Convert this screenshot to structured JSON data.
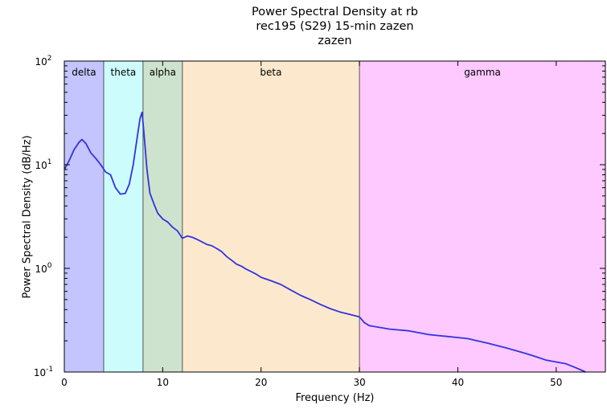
{
  "chart_data": {
    "type": "line",
    "title": "Power Spectral Density at rb",
    "subtitle": "rec195 (S29) 15-min zazen",
    "subtitle2": "zazen",
    "xlabel": "Frequency (Hz)",
    "ylabel": "Power Spectral Density (dB/Hz)",
    "xlim": [
      0,
      55
    ],
    "ylim": [
      0.1,
      100
    ],
    "yscale": "log",
    "grid": false,
    "x_ticks": [
      0,
      10,
      20,
      30,
      40,
      50
    ],
    "y_ticks": [
      {
        "value": 0.1,
        "base": "10",
        "exp": "-1"
      },
      {
        "value": 1,
        "base": "10",
        "exp": "0"
      },
      {
        "value": 10,
        "base": "10",
        "exp": "1"
      },
      {
        "value": 100,
        "base": "10",
        "exp": "2"
      }
    ],
    "bands": [
      {
        "label": "delta",
        "range": [
          0,
          4
        ],
        "color": "#c4c4ff"
      },
      {
        "label": "theta",
        "range": [
          4,
          8
        ],
        "color": "#cdfcfc"
      },
      {
        "label": "alpha",
        "range": [
          8,
          12
        ],
        "color": "#cde3cd"
      },
      {
        "label": "beta",
        "range": [
          12,
          30
        ],
        "color": "#fce9cd"
      },
      {
        "label": "gamma",
        "range": [
          30,
          55
        ],
        "color": "#fec9fe"
      }
    ],
    "line_color": "#3333dd",
    "series": [
      {
        "x": [
          0,
          0.5,
          1,
          1.5,
          1.8,
          2.2,
          2.7,
          3.2,
          3.7,
          4.2,
          4.7,
          5.2,
          5.7,
          6.2,
          6.6,
          7,
          7.4,
          7.7,
          7.9,
          8.1,
          8.4,
          8.7,
          9.1,
          9.5,
          10,
          10.5,
          11,
          11.5,
          12,
          12.5,
          13,
          13.5,
          14,
          14.5,
          15,
          15.5,
          16,
          16.5,
          17,
          17.5,
          18,
          18.5,
          19,
          19.5,
          20,
          21,
          22,
          23,
          24,
          25,
          26,
          27,
          28,
          29,
          30,
          30.5,
          31,
          32,
          33,
          34,
          35,
          36,
          37,
          38,
          39,
          40,
          41,
          42,
          43,
          44,
          45,
          46,
          47,
          48,
          49,
          50,
          51,
          52,
          53
        ],
        "y": [
          9,
          11,
          14,
          16.5,
          17.5,
          16,
          13,
          11.5,
          10,
          8.5,
          8,
          6,
          5.2,
          5.3,
          6.5,
          10,
          18,
          28,
          32,
          20,
          9,
          5.3,
          4.2,
          3.4,
          3.0,
          2.8,
          2.5,
          2.3,
          1.95,
          2.05,
          2.0,
          1.9,
          1.8,
          1.7,
          1.65,
          1.55,
          1.45,
          1.3,
          1.2,
          1.1,
          1.05,
          0.98,
          0.93,
          0.88,
          0.82,
          0.76,
          0.7,
          0.62,
          0.55,
          0.5,
          0.45,
          0.41,
          0.38,
          0.36,
          0.34,
          0.3,
          0.28,
          0.27,
          0.26,
          0.255,
          0.25,
          0.24,
          0.23,
          0.225,
          0.22,
          0.215,
          0.21,
          0.2,
          0.19,
          0.18,
          0.17,
          0.16,
          0.15,
          0.14,
          0.13,
          0.125,
          0.12,
          0.11,
          0.1
        ]
      }
    ]
  }
}
